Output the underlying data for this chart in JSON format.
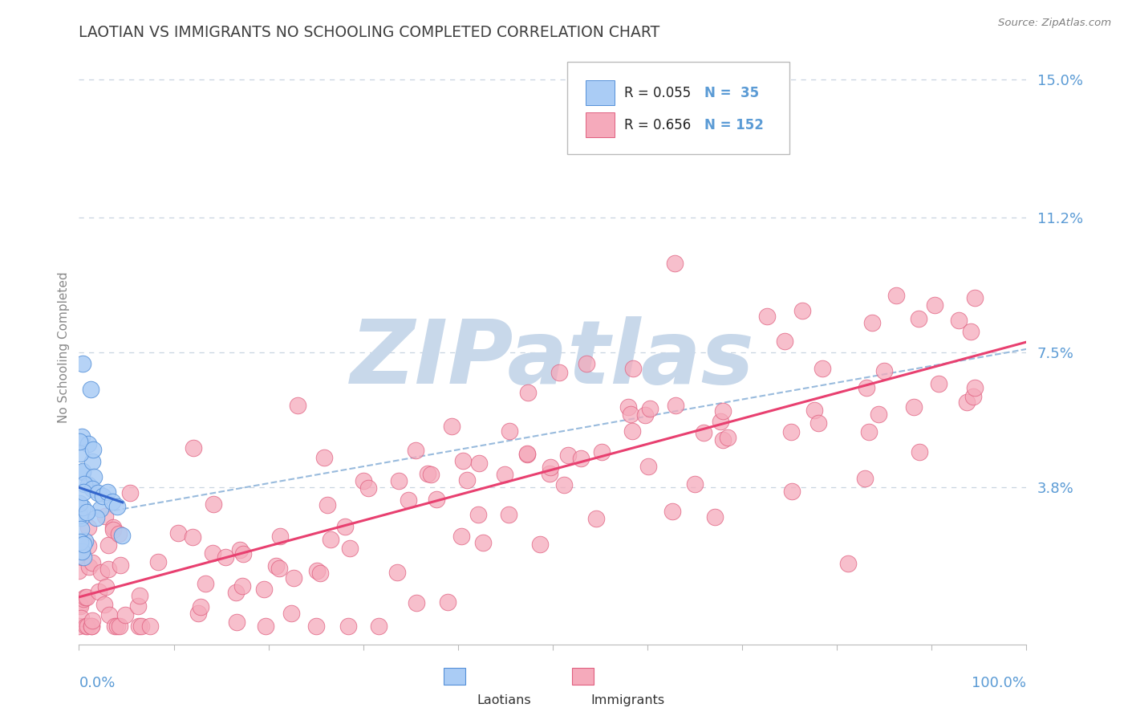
{
  "title": "LAOTIAN VS IMMIGRANTS NO SCHOOLING COMPLETED CORRELATION CHART",
  "source": "Source: ZipAtlas.com",
  "ylabel": "No Schooling Completed",
  "ytick_vals": [
    0.0,
    0.038,
    0.075,
    0.112,
    0.15
  ],
  "ytick_labels": [
    "",
    "3.8%",
    "7.5%",
    "11.2%",
    "15.0%"
  ],
  "xlim": [
    0.0,
    1.0
  ],
  "ylim": [
    -0.005,
    0.158
  ],
  "laotian_color": "#aaccf5",
  "laotian_edge": "#5590d8",
  "immigrant_color": "#f5aabb",
  "immigrant_edge": "#e06080",
  "trend_laotian_color": "#3366cc",
  "trend_immigrant_color": "#e84070",
  "trend_dashed_color": "#99bbdd",
  "legend_R_laotian": "R = 0.055",
  "legend_N_laotian": "N =  35",
  "legend_R_immigrant": "R = 0.656",
  "legend_N_immigrant": "N = 152",
  "legend_text_color": "#5b9bd5",
  "legend_R_color": "#222222",
  "watermark": "ZIPatlas",
  "watermark_color": "#c8d8ea",
  "title_color": "#404040",
  "tick_label_color": "#5b9bd5",
  "grid_color": "#c8d4e0",
  "source_color": "#808080"
}
